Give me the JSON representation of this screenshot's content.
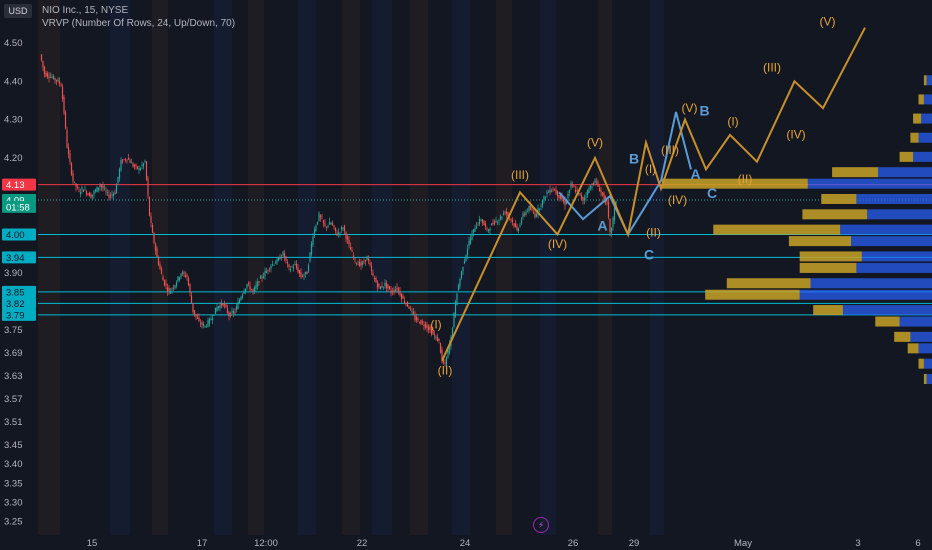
{
  "header": {
    "currency": "USD",
    "title": "NIO Inc., 15, NYSE",
    "indicator": "VRVP (Number Of Rows, 24, Up/Down, 70)"
  },
  "colors": {
    "background": "#131722",
    "up": "#26a69a",
    "down": "#ef5350",
    "wave_orange": "#c7902a",
    "wave_blue": "#5b9bd5",
    "hline_cyan": "#00bcd4",
    "hline_red": "#f23645",
    "vp_up": "#2962ff",
    "vp_down": "#c9a227"
  },
  "chart_data": {
    "type": "candlestick",
    "ylim": [
      3.21,
      4.56
    ],
    "y_ticks": [
      4.5,
      4.4,
      4.3,
      4.2,
      4.09,
      3.9,
      3.75,
      3.69,
      3.63,
      3.57,
      3.51,
      3.45,
      3.4,
      3.35,
      3.3,
      3.25
    ],
    "x_ticks": [
      "15",
      "17",
      "12:00",
      "22",
      "24",
      "26",
      "29",
      "May",
      "3",
      "6"
    ],
    "price_labels": [
      {
        "text": "4.13",
        "price": 4.13,
        "kind": "red"
      },
      {
        "text": "4.09",
        "price": 4.09,
        "kind": "green"
      },
      {
        "text": "01:58",
        "price": 4.072,
        "kind": "timer"
      },
      {
        "text": "4.00",
        "price": 4.0,
        "kind": "cyan"
      },
      {
        "text": "3.94",
        "price": 3.94,
        "kind": "cyan"
      },
      {
        "text": "3.85",
        "price": 3.85,
        "kind": "cyan"
      },
      {
        "text": "3.82",
        "price": 3.82,
        "kind": "cyan"
      },
      {
        "text": "3.79",
        "price": 3.79,
        "kind": "cyan"
      }
    ],
    "horizontal_lines": [
      {
        "price": 4.13,
        "color": "red"
      },
      {
        "price": 4.0,
        "color": "cyan"
      },
      {
        "price": 3.94,
        "color": "cyan"
      },
      {
        "price": 3.85,
        "color": "cyan"
      },
      {
        "price": 3.82,
        "color": "cyan"
      },
      {
        "price": 3.79,
        "color": "cyan"
      }
    ],
    "price_path": [
      [
        0,
        4.47
      ],
      [
        3,
        4.42
      ],
      [
        8,
        4.41
      ],
      [
        12,
        4.4
      ],
      [
        14,
        4.39
      ],
      [
        16,
        4.32
      ],
      [
        18,
        4.23
      ],
      [
        22,
        4.14
      ],
      [
        26,
        4.11
      ],
      [
        28,
        4.12
      ],
      [
        34,
        4.1
      ],
      [
        40,
        4.13
      ],
      [
        46,
        4.1
      ],
      [
        50,
        4.11
      ],
      [
        54,
        4.19
      ],
      [
        58,
        4.2
      ],
      [
        62,
        4.18
      ],
      [
        66,
        4.17
      ],
      [
        70,
        4.19
      ],
      [
        73,
        4.05
      ],
      [
        75,
        4.0
      ],
      [
        78,
        3.94
      ],
      [
        82,
        3.88
      ],
      [
        86,
        3.85
      ],
      [
        90,
        3.87
      ],
      [
        94,
        3.9
      ],
      [
        98,
        3.89
      ],
      [
        102,
        3.8
      ],
      [
        106,
        3.77
      ],
      [
        110,
        3.76
      ],
      [
        114,
        3.78
      ],
      [
        118,
        3.81
      ],
      [
        122,
        3.82
      ],
      [
        126,
        3.79
      ],
      [
        130,
        3.8
      ],
      [
        134,
        3.84
      ],
      [
        138,
        3.87
      ],
      [
        142,
        3.85
      ],
      [
        146,
        3.88
      ],
      [
        150,
        3.9
      ],
      [
        154,
        3.92
      ],
      [
        158,
        3.93
      ],
      [
        162,
        3.95
      ],
      [
        166,
        3.91
      ],
      [
        170,
        3.92
      ],
      [
        174,
        3.89
      ],
      [
        178,
        3.9
      ],
      [
        182,
        4.0
      ],
      [
        186,
        4.05
      ],
      [
        190,
        4.02
      ],
      [
        194,
        4.03
      ],
      [
        198,
        4.0
      ],
      [
        202,
        4.02
      ],
      [
        206,
        3.97
      ],
      [
        210,
        3.93
      ],
      [
        214,
        3.92
      ],
      [
        218,
        3.94
      ],
      [
        222,
        3.89
      ],
      [
        226,
        3.86
      ],
      [
        230,
        3.87
      ],
      [
        234,
        3.85
      ],
      [
        238,
        3.86
      ],
      [
        242,
        3.83
      ],
      [
        246,
        3.81
      ],
      [
        250,
        3.78
      ],
      [
        254,
        3.77
      ],
      [
        258,
        3.76
      ],
      [
        262,
        3.74
      ],
      [
        266,
        3.72
      ],
      [
        268,
        3.67
      ],
      [
        270,
        3.66
      ],
      [
        274,
        3.73
      ],
      [
        278,
        3.85
      ],
      [
        282,
        3.92
      ],
      [
        286,
        3.98
      ],
      [
        290,
        4.02
      ],
      [
        294,
        4.04
      ],
      [
        298,
        4.01
      ],
      [
        302,
        4.03
      ],
      [
        306,
        4.04
      ],
      [
        310,
        4.06
      ],
      [
        314,
        4.04
      ],
      [
        318,
        4.01
      ],
      [
        322,
        4.05
      ],
      [
        326,
        4.07
      ],
      [
        330,
        4.05
      ],
      [
        334,
        4.08
      ],
      [
        338,
        4.11
      ],
      [
        342,
        4.12
      ],
      [
        346,
        4.1
      ],
      [
        350,
        4.08
      ],
      [
        354,
        4.13
      ],
      [
        358,
        4.11
      ],
      [
        362,
        4.09
      ],
      [
        366,
        4.12
      ],
      [
        370,
        4.14
      ],
      [
        374,
        4.11
      ],
      [
        378,
        4.08
      ],
      [
        380,
        4.0
      ],
      [
        382,
        4.04
      ],
      [
        384,
        4.09
      ]
    ],
    "volume_profile": [
      {
        "price": 4.4,
        "up": 0.02,
        "down": 0.01
      },
      {
        "price": 4.35,
        "up": 0.03,
        "down": 0.02
      },
      {
        "price": 4.3,
        "up": 0.04,
        "down": 0.03
      },
      {
        "price": 4.25,
        "up": 0.05,
        "down": 0.03
      },
      {
        "price": 4.2,
        "up": 0.07,
        "down": 0.05
      },
      {
        "price": 4.16,
        "up": 0.2,
        "down": 0.17
      },
      {
        "price": 4.13,
        "up": 0.46,
        "down": 0.54
      },
      {
        "price": 4.09,
        "up": 0.28,
        "down": 0.13
      },
      {
        "price": 4.05,
        "up": 0.24,
        "down": 0.24
      },
      {
        "price": 4.01,
        "up": 0.34,
        "down": 0.47
      },
      {
        "price": 3.98,
        "up": 0.3,
        "down": 0.23
      },
      {
        "price": 3.94,
        "up": 0.26,
        "down": 0.23
      },
      {
        "price": 3.91,
        "up": 0.28,
        "down": 0.21
      },
      {
        "price": 3.87,
        "up": 0.45,
        "down": 0.31
      },
      {
        "price": 3.84,
        "up": 0.49,
        "down": 0.35
      },
      {
        "price": 3.8,
        "up": 0.33,
        "down": 0.11
      },
      {
        "price": 3.77,
        "up": 0.12,
        "down": 0.09
      },
      {
        "price": 3.73,
        "up": 0.08,
        "down": 0.06
      },
      {
        "price": 3.7,
        "up": 0.05,
        "down": 0.04
      },
      {
        "price": 3.66,
        "up": 0.03,
        "down": 0.02
      },
      {
        "price": 3.62,
        "up": 0.02,
        "down": 0.01
      }
    ],
    "wave_orange": [
      [
        268,
        3.67
      ],
      [
        320,
        4.11
      ],
      [
        345,
        4.0
      ],
      [
        370,
        4.2
      ],
      [
        392,
        4.0
      ],
      [
        404,
        4.24
      ],
      [
        414,
        4.12
      ],
      [
        430,
        4.3
      ],
      [
        444,
        4.17
      ],
      [
        460,
        4.26
      ],
      [
        478,
        4.19
      ],
      [
        503,
        4.4
      ],
      [
        522,
        4.33
      ],
      [
        550,
        4.54
      ]
    ],
    "wave_blue": [
      [
        346,
        4.11
      ],
      [
        362,
        4.04
      ],
      [
        380,
        4.1
      ],
      [
        392,
        4.0
      ],
      [
        414,
        4.14
      ],
      [
        424,
        4.32
      ],
      [
        434,
        4.17
      ]
    ],
    "wave_labels": [
      {
        "text": "(I)",
        "x": 264,
        "price": 3.755,
        "color": "orange"
      },
      {
        "text": "(II)",
        "x": 270,
        "price": 3.634,
        "color": "orange"
      },
      {
        "text": "(III)",
        "x": 320,
        "price": 4.145,
        "color": "orange"
      },
      {
        "text": "(IV)",
        "x": 345,
        "price": 3.965,
        "color": "orange"
      },
      {
        "text": "(V)",
        "x": 370,
        "price": 4.23,
        "color": "orange"
      },
      {
        "text": "B",
        "x": 396,
        "price": 4.185,
        "color": "blue"
      },
      {
        "text": "A",
        "x": 375,
        "price": 4.01,
        "color": "blue"
      },
      {
        "text": "(I)",
        "x": 407,
        "price": 4.16,
        "color": "orange"
      },
      {
        "text": "(II)",
        "x": 409,
        "price": 3.995,
        "color": "orange"
      },
      {
        "text": "C",
        "x": 406,
        "price": 3.935,
        "color": "blue"
      },
      {
        "text": "(III)",
        "x": 420,
        "price": 4.21,
        "color": "orange"
      },
      {
        "text": "(IV)",
        "x": 425,
        "price": 4.08,
        "color": "orange"
      },
      {
        "text": "(V)",
        "x": 433,
        "price": 4.32,
        "color": "orange"
      },
      {
        "text": "B",
        "x": 443,
        "price": 4.31,
        "color": "blue"
      },
      {
        "text": "A",
        "x": 437,
        "price": 4.145,
        "color": "blue"
      },
      {
        "text": "C",
        "x": 448,
        "price": 4.095,
        "color": "blue"
      },
      {
        "text": "(I)",
        "x": 462,
        "price": 4.285,
        "color": "orange"
      },
      {
        "text": "(II)",
        "x": 470,
        "price": 4.135,
        "color": "orange"
      },
      {
        "text": "(III)",
        "x": 488,
        "price": 4.425,
        "color": "orange"
      },
      {
        "text": "(IV)",
        "x": 504,
        "price": 4.25,
        "color": "orange"
      },
      {
        "text": "(V)",
        "x": 525,
        "price": 4.545,
        "color": "orange"
      }
    ]
  },
  "event_icon": "lightning-icon",
  "event_symbol": "⚡"
}
